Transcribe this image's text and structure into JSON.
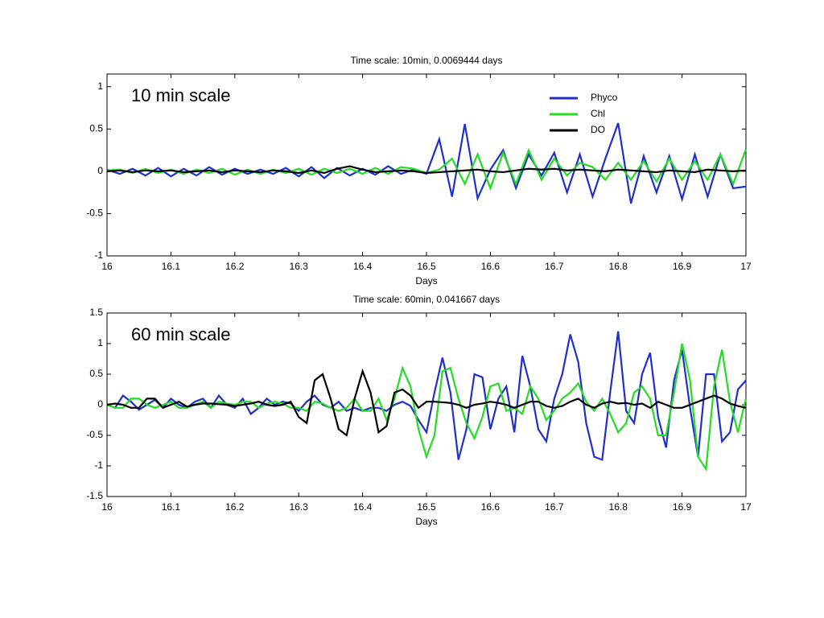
{
  "chart_data": [
    {
      "type": "line",
      "title": "Time scale: 10min, 0.0069444 days",
      "xlabel": "Days",
      "annotation": "10 min scale",
      "legend": "upper right",
      "x": [
        16,
        16.02,
        16.04,
        16.06,
        16.08,
        16.1,
        16.12,
        16.14,
        16.16,
        16.18,
        16.2,
        16.22,
        16.24,
        16.26,
        16.28,
        16.3,
        16.32,
        16.34,
        16.36,
        16.38,
        16.4,
        16.42,
        16.44,
        16.46,
        16.48,
        16.5,
        16.52,
        16.54,
        16.56,
        16.58,
        16.6,
        16.62,
        16.64,
        16.66,
        16.68,
        16.7,
        16.72,
        16.74,
        16.76,
        16.78,
        16.8,
        16.82,
        16.84,
        16.86,
        16.88,
        16.9,
        16.92,
        16.94,
        16.96,
        16.98,
        17
      ],
      "xlim": [
        16,
        17
      ],
      "xticks": [
        16,
        16.1,
        16.2,
        16.3,
        16.4,
        16.5,
        16.6,
        16.7,
        16.8,
        16.9,
        17
      ],
      "ylim": [
        -1,
        1.15
      ],
      "yticks": [
        -1,
        -0.5,
        0,
        0.5,
        1
      ],
      "series": [
        {
          "name": "Phyco",
          "color": "#1f2fcc",
          "values": [
            0.02,
            -0.03,
            0.03,
            -0.05,
            0.04,
            -0.06,
            0.03,
            -0.05,
            0.05,
            -0.04,
            0.03,
            -0.03,
            0.02,
            -0.03,
            0.04,
            -0.06,
            0.05,
            -0.08,
            0.04,
            -0.05,
            0.03,
            -0.04,
            0.06,
            -0.03,
            0.02,
            -0.03,
            0.38,
            -0.3,
            0.56,
            -0.32,
            0.02,
            0.25,
            -0.2,
            0.2,
            -0.05,
            0.22,
            -0.25,
            0.2,
            -0.3,
            0.15,
            0.57,
            -0.38,
            0.18,
            -0.25,
            0.18,
            -0.33,
            0.2,
            -0.3,
            0.2,
            -0.2,
            -0.18
          ]
        },
        {
          "name": "Chl",
          "color": "#22dd22",
          "values": [
            0.01,
            0.02,
            -0.02,
            0.03,
            -0.02,
            0.02,
            -0.03,
            0.02,
            -0.02,
            0.03,
            -0.04,
            0.02,
            -0.03,
            0.02,
            -0.02,
            0.03,
            -0.04,
            0.03,
            -0.02,
            0.03,
            -0.03,
            0.04,
            -0.03,
            0.05,
            0.03,
            -0.02,
            0.02,
            0.15,
            -0.15,
            0.2,
            -0.2,
            0.22,
            -0.15,
            0.25,
            -0.1,
            0.15,
            -0.05,
            0.1,
            0.05,
            -0.1,
            0.1,
            -0.1,
            0.12,
            -0.12,
            0.15,
            -0.1,
            0.12,
            -0.1,
            0.2,
            -0.15,
            0.26
          ]
        },
        {
          "name": "DO",
          "color": "#000000",
          "values": [
            0,
            0.01,
            -0.01,
            0.01,
            0,
            0.01,
            -0.01,
            0,
            0.01,
            -0.01,
            0.01,
            0,
            -0.01,
            0.01,
            0,
            -0.02,
            0.01,
            -0.02,
            0.03,
            0.06,
            0.02,
            -0.01,
            0,
            0.01,
            0,
            -0.02,
            -0.01,
            0,
            0.01,
            0.02,
            0,
            -0.01,
            0.01,
            0.03,
            0.02,
            0.03,
            0.01,
            0.02,
            0.01,
            0,
            0.02,
            0.01,
            0,
            -0.01,
            0.01,
            0,
            -0.01,
            0.02,
            0.01,
            0,
            0.01
          ]
        }
      ]
    },
    {
      "type": "line",
      "title": "Time scale: 60min, 0.041667 days",
      "xlabel": "Days",
      "annotation": "60 min scale",
      "x": [
        16,
        16.0125,
        16.025,
        16.0375,
        16.05,
        16.0625,
        16.075,
        16.0875,
        16.1,
        16.1125,
        16.125,
        16.1375,
        16.15,
        16.1625,
        16.175,
        16.1875,
        16.2,
        16.2125,
        16.225,
        16.2375,
        16.25,
        16.2625,
        16.275,
        16.2875,
        16.3,
        16.3125,
        16.325,
        16.3375,
        16.35,
        16.3625,
        16.375,
        16.3875,
        16.4,
        16.4125,
        16.425,
        16.4375,
        16.45,
        16.4625,
        16.475,
        16.4875,
        16.5,
        16.5125,
        16.525,
        16.5375,
        16.55,
        16.5625,
        16.575,
        16.5875,
        16.6,
        16.6125,
        16.625,
        16.6375,
        16.65,
        16.6625,
        16.675,
        16.6875,
        16.7,
        16.7125,
        16.725,
        16.7375,
        16.75,
        16.7625,
        16.775,
        16.7875,
        16.8,
        16.8125,
        16.825,
        16.8375,
        16.85,
        16.8625,
        16.875,
        16.8875,
        16.9,
        16.9125,
        16.925,
        16.9375,
        16.95,
        16.9625,
        16.975,
        16.9875,
        17
      ],
      "xlim": [
        16,
        17
      ],
      "xticks": [
        16,
        16.1,
        16.2,
        16.3,
        16.4,
        16.5,
        16.6,
        16.7,
        16.8,
        16.9,
        17
      ],
      "ylim": [
        -1.5,
        1.5
      ],
      "yticks": [
        -1.5,
        -1,
        -0.5,
        0,
        0.5,
        1,
        1.5
      ],
      "series": [
        {
          "name": "Phyco",
          "color": "#1f2fcc",
          "values": [
            0,
            -0.05,
            0.15,
            0.05,
            -0.08,
            0,
            0.08,
            -0.05,
            0.1,
            0,
            -0.05,
            0.05,
            0.1,
            -0.05,
            0.15,
            0,
            -0.05,
            0.1,
            -0.15,
            -0.05,
            0.1,
            0,
            0.05,
            0.02,
            -0.1,
            0.05,
            0.15,
            0,
            -0.05,
            0.05,
            -0.1,
            -0.05,
            -0.1,
            -0.05,
            -0.05,
            -0.1,
            0,
            0.05,
            -0.02,
            -0.25,
            -0.45,
            0.2,
            0.77,
            0.2,
            -0.9,
            -0.4,
            0.5,
            0.45,
            -0.4,
            0.1,
            0.3,
            -0.45,
            0.8,
            0.3,
            -0.4,
            -0.6,
            0.1,
            0.5,
            1.15,
            0.7,
            -0.3,
            -0.85,
            -0.9,
            0.2,
            1.2,
            -0.1,
            -0.3,
            0.5,
            0.85,
            -0.2,
            -0.7,
            0.4,
            0.9,
            -0.05,
            -0.85,
            0.5,
            0.5,
            -0.6,
            -0.45,
            0.25,
            0.4
          ]
        },
        {
          "name": "Chl",
          "color": "#22dd22",
          "values": [
            0,
            -0.05,
            -0.05,
            0.1,
            0.1,
            0,
            -0.05,
            0,
            0.05,
            -0.05,
            -0.05,
            0,
            0.05,
            -0.05,
            0.05,
            0.02,
            0,
            0.05,
            0.05,
            -0.05,
            0.02,
            0.05,
            0.02,
            -0.05,
            -0.05,
            -0.1,
            0.05,
            0.02,
            -0.05,
            -0.1,
            -0.05,
            0.1,
            -0.1,
            -0.1,
            0.1,
            -0.25,
            0.1,
            0.6,
            0.3,
            -0.4,
            -0.85,
            -0.5,
            0.55,
            0.6,
            0.1,
            -0.3,
            -0.55,
            -0.2,
            0.3,
            0.35,
            -0.1,
            -0.05,
            -0.15,
            0.3,
            0.1,
            -0.25,
            -0.1,
            0.1,
            0.2,
            0.35,
            0.05,
            -0.1,
            0.1,
            -0.15,
            -0.45,
            -0.3,
            0.2,
            0.3,
            0.1,
            -0.5,
            -0.5,
            0.2,
            1.0,
            0.4,
            -0.85,
            -1.05,
            0.3,
            0.9,
            0.05,
            -0.45,
            0.1
          ]
        },
        {
          "name": "DO",
          "color": "#000000",
          "values": [
            0,
            0.02,
            0,
            -0.05,
            -0.05,
            0.1,
            0.1,
            -0.05,
            0,
            0.05,
            -0.03,
            0,
            0.02,
            0.02,
            0.01,
            0,
            -0.02,
            0,
            0.02,
            0.05,
            0,
            -0.02,
            0,
            0.05,
            -0.2,
            -0.3,
            0.4,
            0.5,
            0.1,
            -0.4,
            -0.5,
            0.1,
            0.55,
            0.2,
            -0.45,
            -0.35,
            0.2,
            0.25,
            0.15,
            -0.05,
            0.05,
            0.05,
            0.04,
            0.03,
            0,
            -0.05,
            0,
            0.02,
            0.05,
            0.03,
            0,
            -0.05,
            0,
            0.05,
            0.05,
            -0.02,
            -0.05,
            -0.02,
            0.05,
            0.1,
            0,
            -0.05,
            0.02,
            0.05,
            0.02,
            0.03,
            0,
            0.02,
            -0.05,
            0.05,
            0,
            -0.05,
            -0.05,
            0,
            0.05,
            0.1,
            0.15,
            0.1,
            0.02,
            -0.02,
            -0.05
          ]
        }
      ]
    }
  ]
}
